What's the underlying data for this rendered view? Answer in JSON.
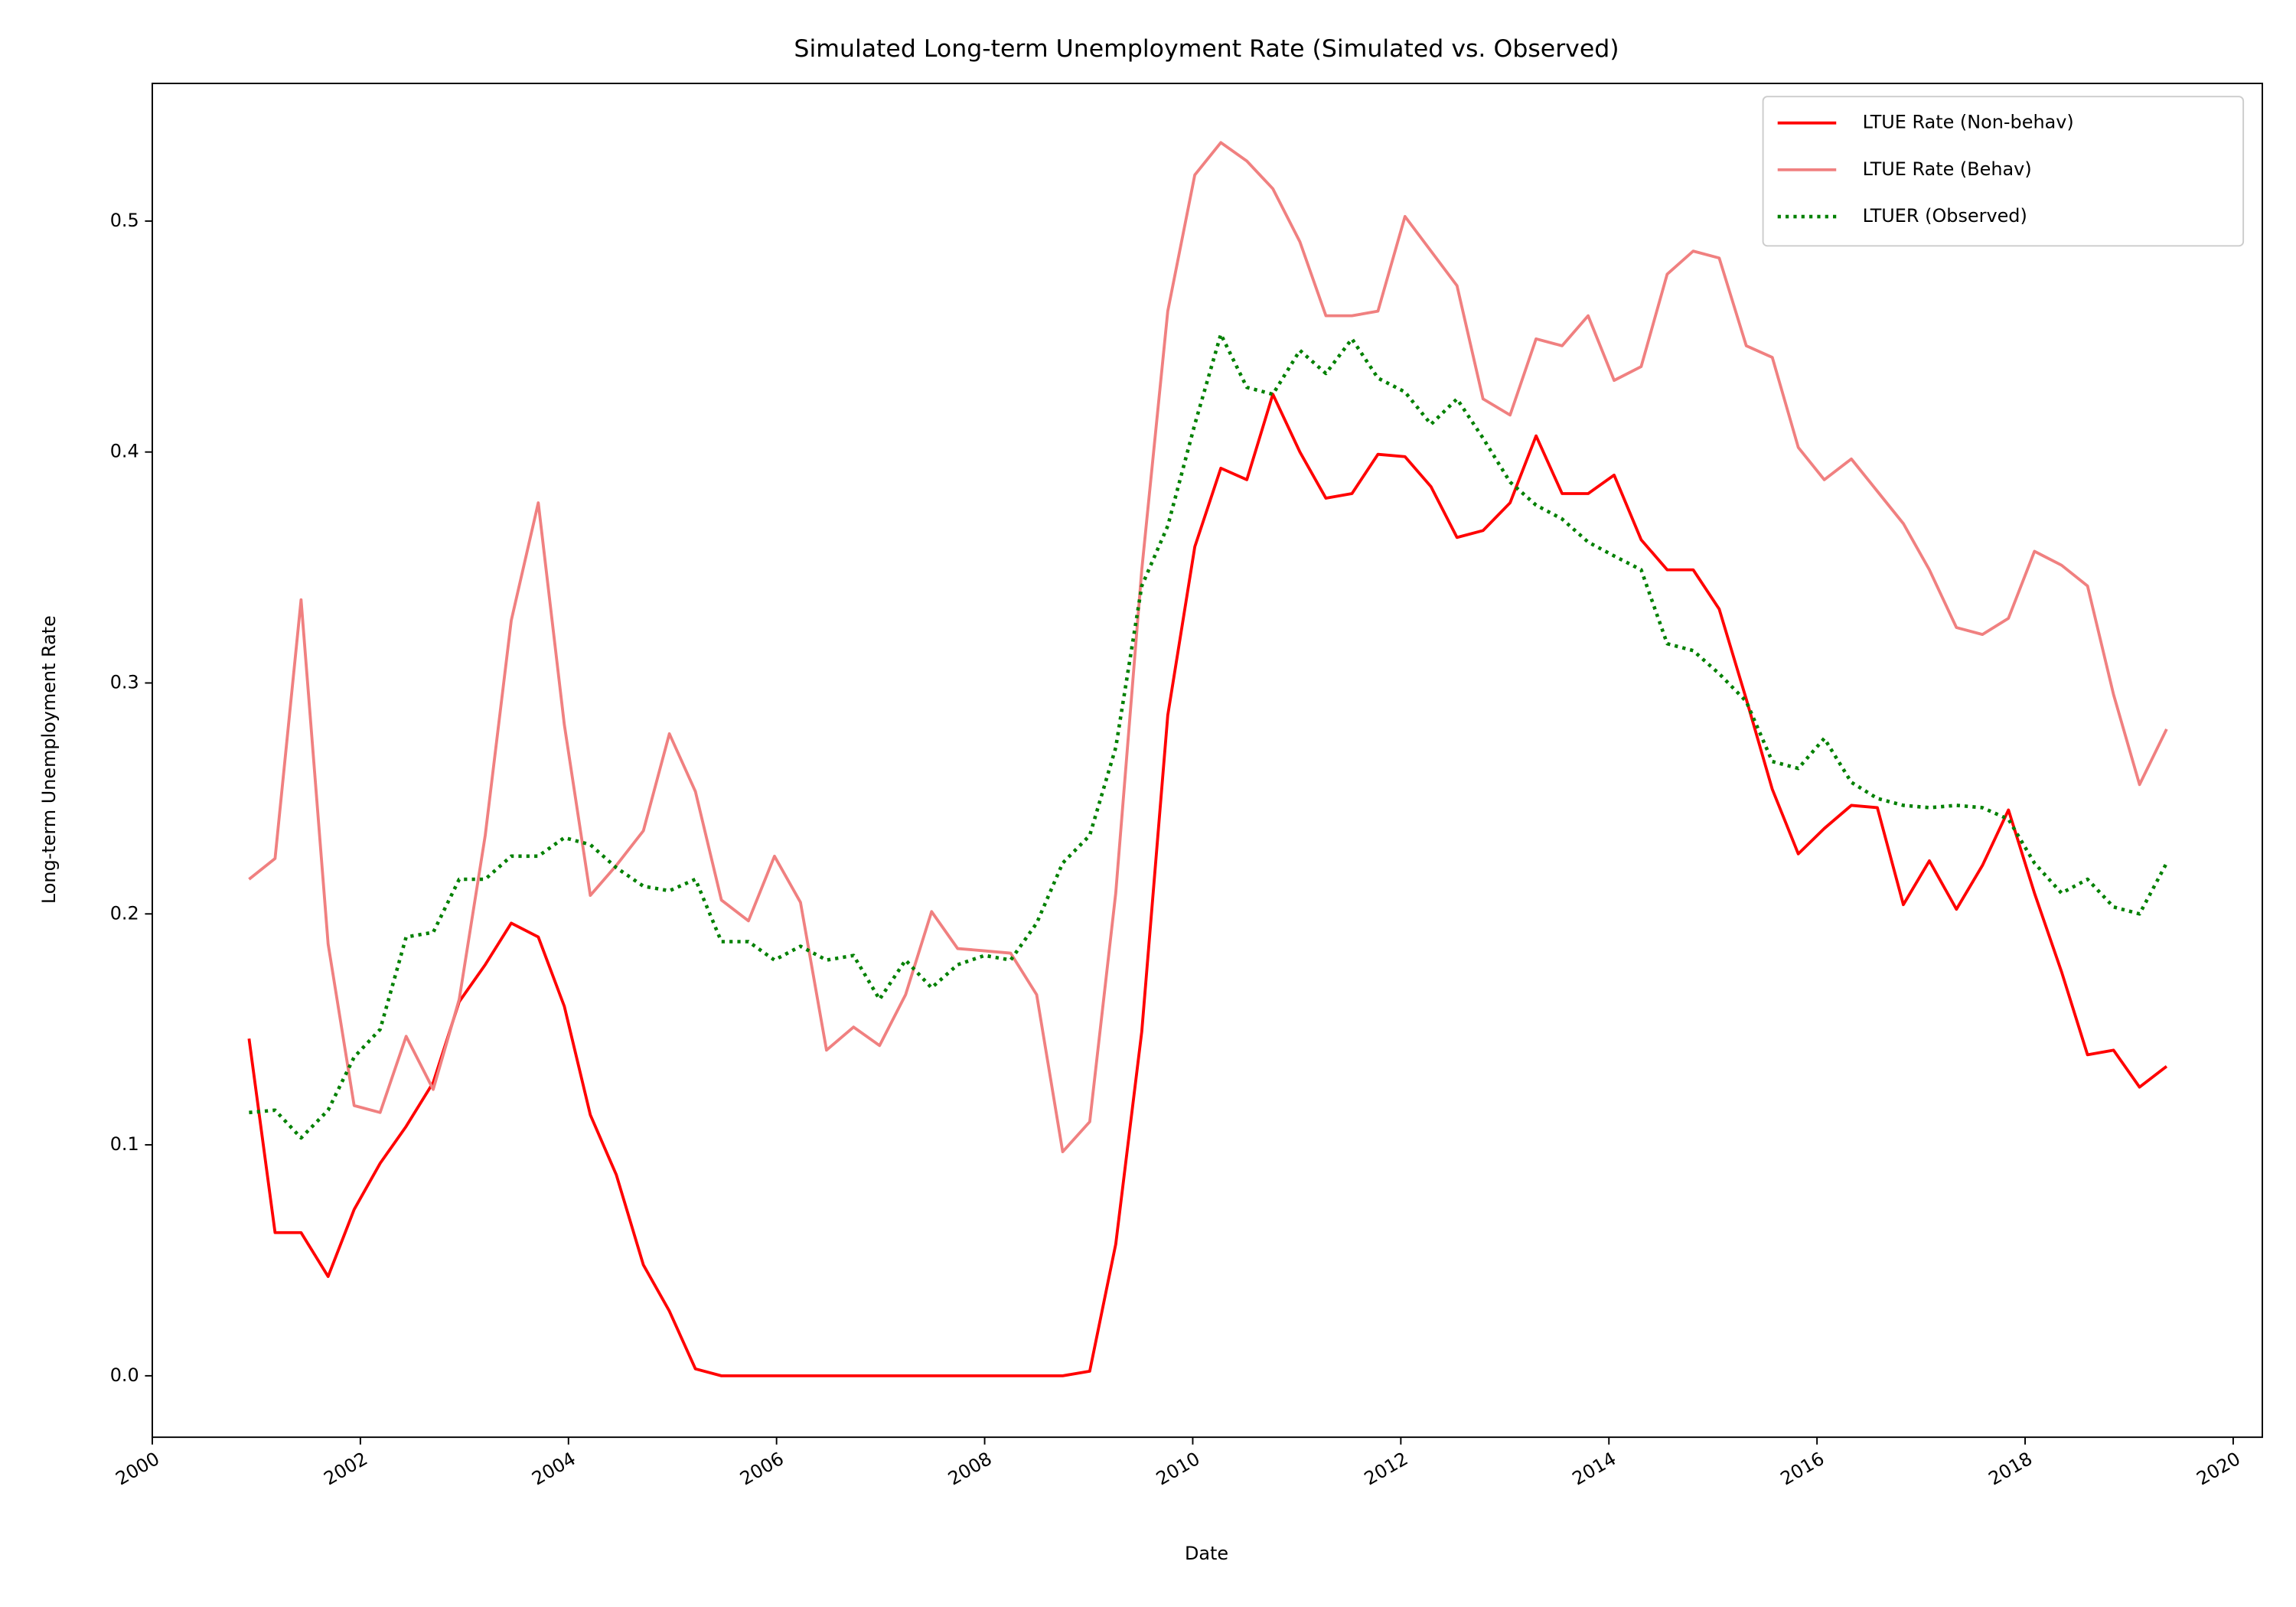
{
  "chart_data": {
    "type": "line",
    "title": "Simulated Long-term Unemployment Rate (Simulated vs. Observed)",
    "x_label": "Date",
    "y_label": "Long-term Unemployment Rate",
    "x": [
      2000.93,
      2001.18,
      2001.43,
      2001.69,
      2001.94,
      2002.19,
      2002.44,
      2002.7,
      2002.95,
      2003.2,
      2003.45,
      2003.71,
      2003.96,
      2004.21,
      2004.46,
      2004.72,
      2004.97,
      2005.22,
      2005.47,
      2005.73,
      2005.98,
      2006.23,
      2006.48,
      2006.74,
      2006.99,
      2007.24,
      2007.49,
      2007.74,
      2008.0,
      2008.25,
      2008.5,
      2008.75,
      2009.01,
      2009.26,
      2009.51,
      2009.76,
      2010.02,
      2010.27,
      2010.52,
      2010.77,
      2011.03,
      2011.28,
      2011.53,
      2011.78,
      2012.04,
      2012.29,
      2012.54,
      2012.79,
      2013.05,
      2013.3,
      2013.55,
      2013.8,
      2014.05,
      2014.31,
      2014.56,
      2014.81,
      2015.06,
      2015.32,
      2015.57,
      2015.82,
      2016.07,
      2016.33,
      2016.58,
      2016.83,
      2017.08,
      2017.34,
      2017.59,
      2017.84,
      2018.09,
      2018.35,
      2018.6,
      2018.85,
      2019.1,
      2019.36
    ],
    "series": [
      {
        "name": "LTUE Rate (Non-behav)",
        "color": "#ff0000",
        "style": "solid",
        "values": [
          0.146,
          0.062,
          0.062,
          0.043,
          0.072,
          0.092,
          0.108,
          0.127,
          0.162,
          0.178,
          0.196,
          0.19,
          0.16,
          0.113,
          0.087,
          0.048,
          0.028,
          0.003,
          0,
          0,
          0,
          0,
          0,
          0,
          0,
          0,
          0,
          0,
          0,
          0,
          0,
          0,
          0.002,
          0.057,
          0.149,
          0.286,
          0.359,
          0.393,
          0.388,
          0.425,
          0.4,
          0.38,
          0.382,
          0.399,
          0.398,
          0.385,
          0.363,
          0.366,
          0.378,
          0.407,
          0.382,
          0.382,
          0.39,
          0.362,
          0.349,
          0.349,
          0.332,
          0.293,
          0.254,
          0.226,
          0.237,
          0.247,
          0.246,
          0.204,
          0.223,
          0.202,
          0.221,
          0.245,
          0.209,
          0.175,
          0.139,
          0.141,
          0.125,
          0.134
        ]
      },
      {
        "name": "LTUE Rate (Behav)",
        "color": "#f08080",
        "style": "solid",
        "values": [
          0.215,
          0.224,
          0.336,
          0.187,
          0.117,
          0.114,
          0.147,
          0.124,
          0.163,
          0.234,
          0.327,
          0.378,
          0.282,
          0.208,
          0.221,
          0.236,
          0.278,
          0.253,
          0.206,
          0.197,
          0.225,
          0.205,
          0.141,
          0.151,
          0.143,
          0.165,
          0.201,
          0.185,
          0.184,
          0.183,
          0.165,
          0.097,
          0.11,
          0.209,
          0.349,
          0.461,
          0.52,
          0.534,
          0.526,
          0.514,
          0.491,
          0.459,
          0.459,
          0.461,
          0.502,
          0.487,
          0.472,
          0.423,
          0.416,
          0.449,
          0.446,
          0.459,
          0.431,
          0.437,
          0.477,
          0.487,
          0.484,
          0.446,
          0.441,
          0.402,
          0.388,
          0.397,
          0.383,
          0.369,
          0.349,
          0.324,
          0.321,
          0.328,
          0.357,
          0.351,
          0.342,
          0.295,
          0.256,
          0.28
        ]
      },
      {
        "name": "LTUER (Observed)",
        "color": "#008000",
        "style": "dotted",
        "values": [
          0.114,
          0.115,
          0.103,
          0.115,
          0.138,
          0.15,
          0.19,
          0.192,
          0.215,
          0.215,
          0.225,
          0.225,
          0.233,
          0.23,
          0.22,
          0.212,
          0.21,
          0.215,
          0.188,
          0.188,
          0.18,
          0.186,
          0.18,
          0.182,
          0.163,
          0.18,
          0.168,
          0.178,
          0.182,
          0.18,
          0.196,
          0.222,
          0.234,
          0.272,
          0.342,
          0.368,
          0.412,
          0.451,
          0.428,
          0.425,
          0.444,
          0.434,
          0.449,
          0.432,
          0.426,
          0.412,
          0.423,
          0.406,
          0.387,
          0.377,
          0.371,
          0.361,
          0.355,
          0.349,
          0.317,
          0.314,
          0.304,
          0.292,
          0.266,
          0.263,
          0.276,
          0.257,
          0.25,
          0.247,
          0.246,
          0.247,
          0.246,
          0.241,
          0.222,
          0.209,
          0.215,
          0.203,
          0.2,
          0.222
        ]
      }
    ],
    "xlim": [
      2000,
      2020.28
    ],
    "ylim": [
      -0.0266,
      0.5596
    ],
    "xticks": [
      2000,
      2002,
      2004,
      2006,
      2008,
      2010,
      2012,
      2014,
      2016,
      2018,
      2020
    ],
    "yticks": [
      {
        "value": 0,
        "label": "0.0"
      },
      0.1,
      0.2,
      0.3,
      0.4,
      0.5
    ],
    "grid": false,
    "legend": "upper right"
  }
}
